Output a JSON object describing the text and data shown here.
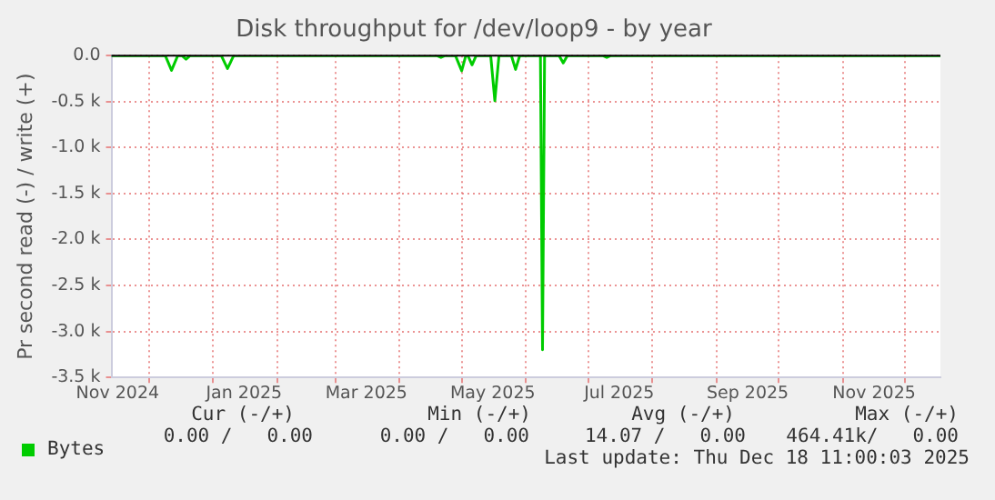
{
  "chart_data": {
    "type": "line",
    "title": "Disk throughput for /dev/loop9 - by year",
    "ylabel": "Pr second read (-) / write (+)",
    "x": [
      "2024-11-13",
      "2024-12-09",
      "2024-12-12",
      "2024-12-15",
      "2024-12-17",
      "2024-12-19",
      "2024-12-21",
      "2025-01-05",
      "2025-01-08",
      "2025-01-11",
      "2025-04-19",
      "2025-04-21",
      "2025-04-23",
      "2025-04-28",
      "2025-05-01",
      "2025-05-03",
      "2025-05-04",
      "2025-05-06",
      "2025-05-08",
      "2025-05-15",
      "2025-05-17",
      "2025-05-19",
      "2025-05-25",
      "2025-05-27",
      "2025-05-29",
      "2025-06-08",
      "2025-06-09",
      "2025-06-10",
      "2025-06-17",
      "2025-06-19",
      "2025-06-21",
      "2025-07-08",
      "2025-07-10",
      "2025-07-12",
      "2025-12-18"
    ],
    "series": [
      {
        "name": "Bytes",
        "color": "#00cc00",
        "values": [
          0,
          0,
          -160,
          0,
          0,
          -40,
          0,
          0,
          -140,
          0,
          0,
          -20,
          0,
          0,
          -165,
          0,
          0,
          -100,
          0,
          0,
          -490,
          0,
          0,
          -150,
          0,
          0,
          -3200,
          0,
          0,
          -80,
          0,
          0,
          -20,
          0,
          0
        ]
      }
    ],
    "xlim": [
      "2024-11-13",
      "2025-12-18"
    ],
    "xticks": [
      {
        "value": "2024-11-16",
        "label": "Nov 2024"
      },
      {
        "value": "2024-12-01",
        "label": null
      },
      {
        "value": "2025-01-01",
        "label": null
      },
      {
        "value": "2025-01-16",
        "label": "Jan 2025"
      },
      {
        "value": "2025-02-01",
        "label": null
      },
      {
        "value": "2025-03-01",
        "label": null
      },
      {
        "value": "2025-03-16",
        "label": "Mar 2025"
      },
      {
        "value": "2025-04-01",
        "label": null
      },
      {
        "value": "2025-05-01",
        "label": null
      },
      {
        "value": "2025-05-16",
        "label": "May 2025"
      },
      {
        "value": "2025-06-01",
        "label": null
      },
      {
        "value": "2025-07-01",
        "label": null
      },
      {
        "value": "2025-07-16",
        "label": "Jul 2025"
      },
      {
        "value": "2025-08-01",
        "label": null
      },
      {
        "value": "2025-09-01",
        "label": null
      },
      {
        "value": "2025-09-16",
        "label": "Sep 2025"
      },
      {
        "value": "2025-10-01",
        "label": null
      },
      {
        "value": "2025-11-01",
        "label": null
      },
      {
        "value": "2025-11-16",
        "label": "Nov 2025"
      },
      {
        "value": "2025-12-01",
        "label": null
      }
    ],
    "ylim": [
      -3500,
      0
    ],
    "yticks": [
      {
        "value": 0,
        "label": "0.0"
      },
      {
        "value": -500,
        "label": "-0.5 k"
      },
      {
        "value": -1000,
        "label": "-1.0 k"
      },
      {
        "value": -1500,
        "label": "-1.5 k"
      },
      {
        "value": -2000,
        "label": "-2.0 k"
      },
      {
        "value": -2500,
        "label": "-2.5 k"
      },
      {
        "value": -3000,
        "label": "-3.0 k"
      },
      {
        "value": -3500,
        "label": "-3.5 k"
      }
    ],
    "ref_lines": [
      {
        "axis": "y",
        "value": 0,
        "color": "#000000"
      }
    ],
    "grid": true,
    "legend": "bottom left",
    "annotations": [
      "Cur (-/+)",
      "Min (-/+)",
      "Avg (-/+)",
      "Max (-/+)",
      "0.00 /   0.00",
      "0.00 /   0.00",
      "14.07 /   0.00",
      "464.41k/   0.00",
      "Last update: Thu Dec 18 11:00:03 2025"
    ]
  }
}
